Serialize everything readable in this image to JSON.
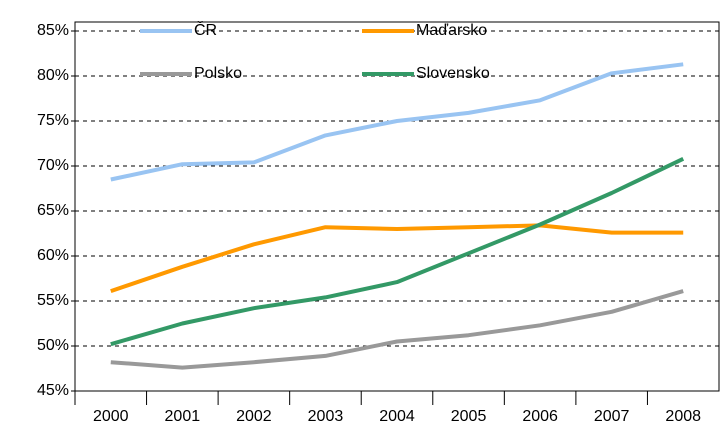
{
  "chart_data": {
    "type": "line",
    "categories": [
      "2000",
      "2001",
      "2002",
      "2003",
      "2004",
      "2005",
      "2006",
      "2007",
      "2008"
    ],
    "series": [
      {
        "name": "ČR",
        "color": "#99c4f2",
        "values": [
          68.5,
          70.2,
          70.4,
          73.4,
          75.0,
          75.9,
          77.3,
          80.3,
          81.3
        ]
      },
      {
        "name": "Maďarsko",
        "color": "#ff9900",
        "values": [
          56.1,
          58.8,
          61.3,
          63.2,
          63.0,
          63.2,
          63.4,
          62.6,
          62.6
        ]
      },
      {
        "name": "Polsko",
        "color": "#999999",
        "values": [
          48.2,
          47.6,
          48.2,
          48.9,
          50.5,
          51.2,
          52.3,
          53.8,
          56.1
        ]
      },
      {
        "name": "Slovensko",
        "color": "#339966",
        "values": [
          50.2,
          52.5,
          54.2,
          55.4,
          57.1,
          60.3,
          63.5,
          67.0,
          70.8
        ]
      }
    ],
    "ylim": [
      45,
      85
    ],
    "yticks": [
      {
        "value": 45,
        "label": "45%"
      },
      {
        "value": 50,
        "label": "50%"
      },
      {
        "value": 55,
        "label": "55%"
      },
      {
        "value": 60,
        "label": "60%"
      },
      {
        "value": 65,
        "label": "65%"
      },
      {
        "value": 70,
        "label": "70%"
      },
      {
        "value": 75,
        "label": "75%"
      },
      {
        "value": 80,
        "label": "80%"
      },
      {
        "value": 85,
        "label": "85%"
      }
    ],
    "grid": true
  }
}
